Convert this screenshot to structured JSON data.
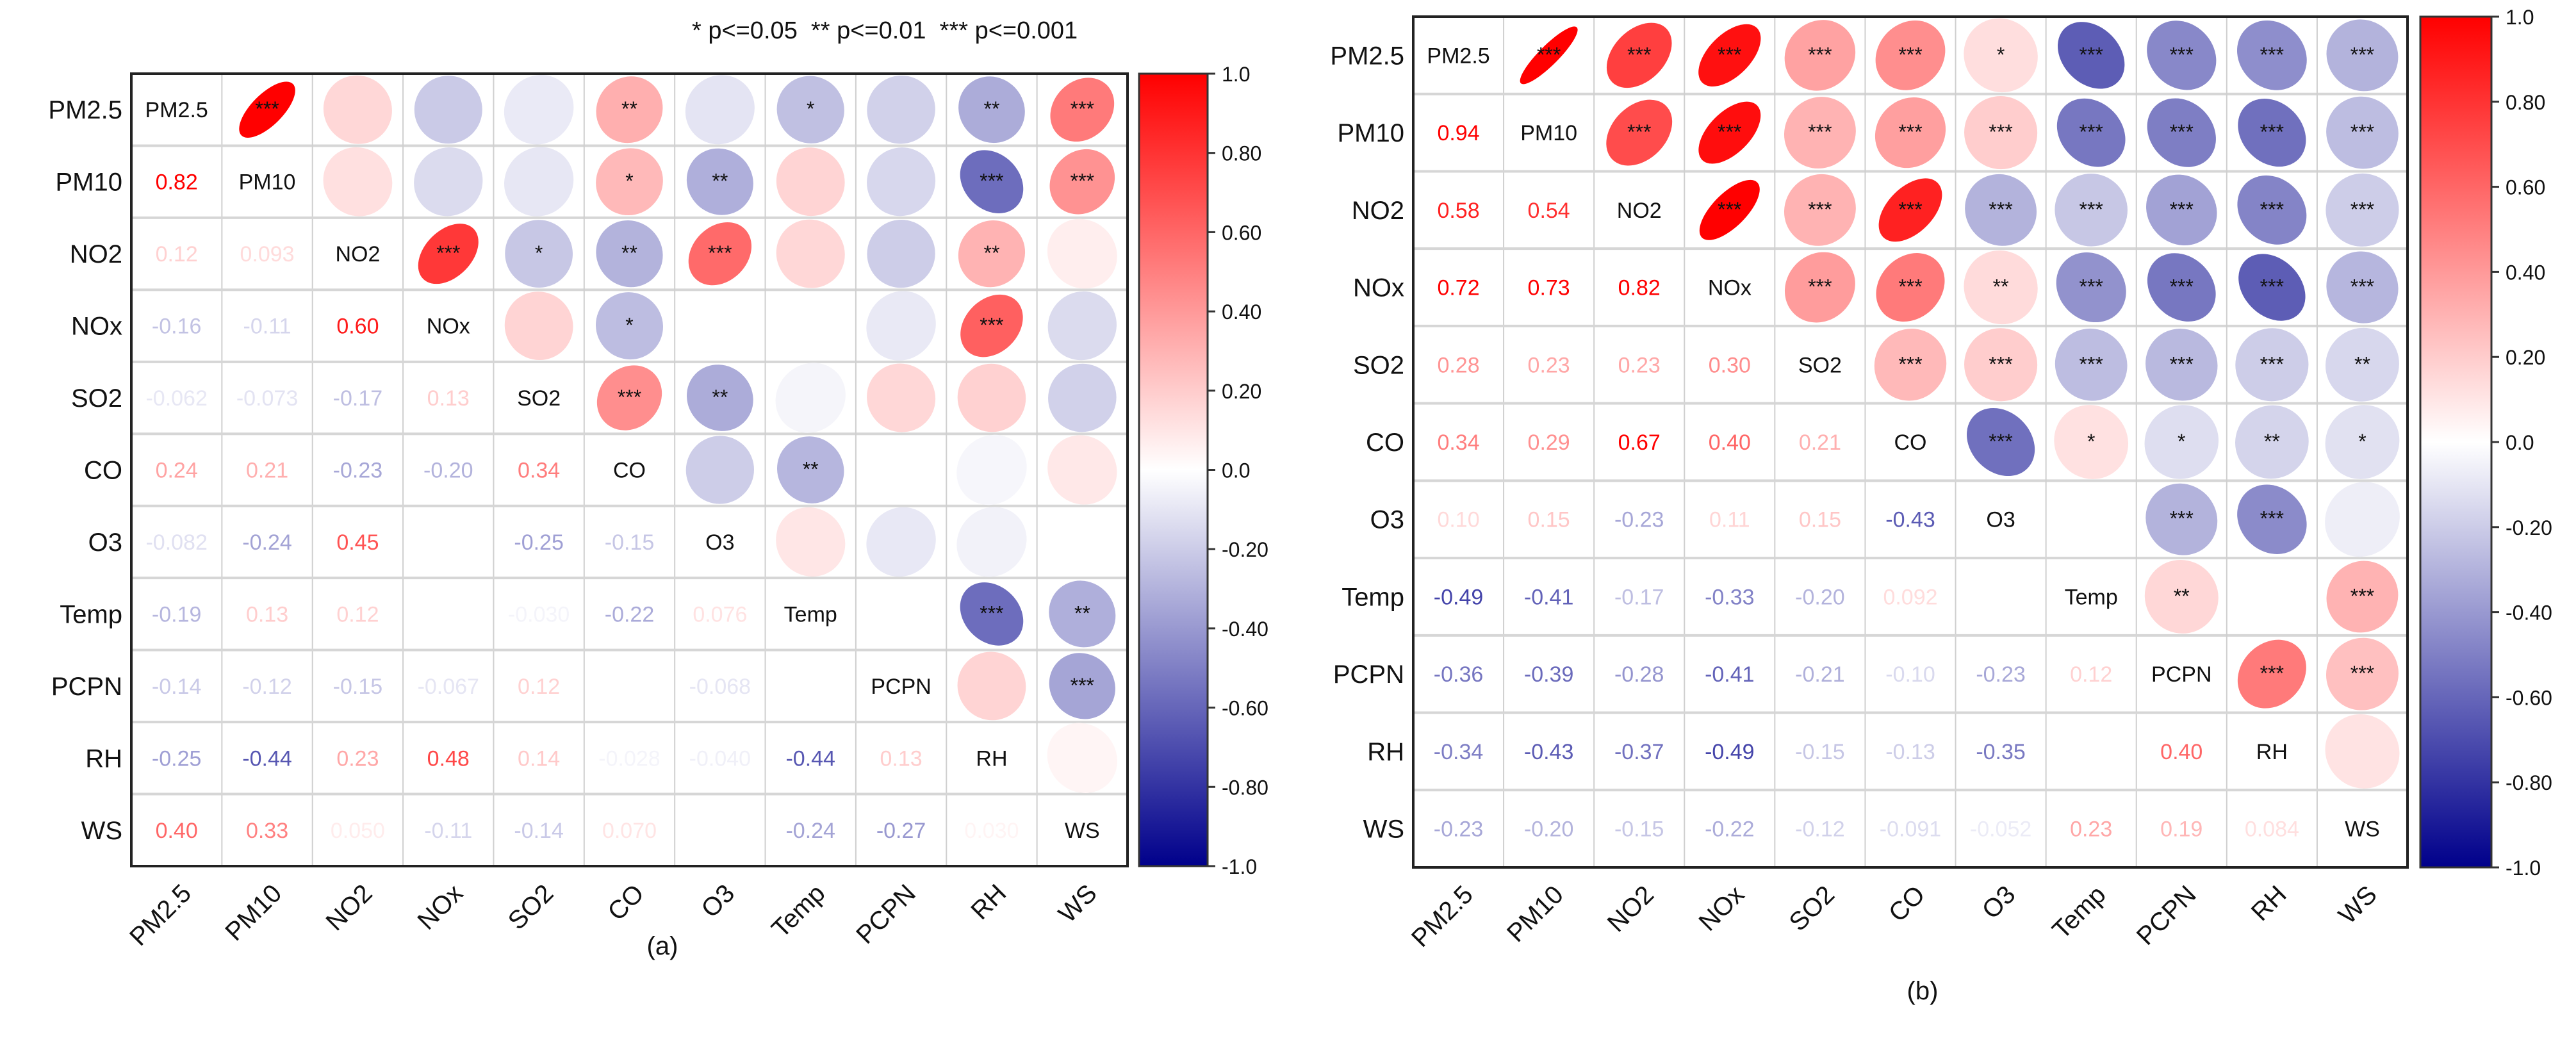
{
  "legend": "* p<=0.05  ** p<=0.01  *** p<=0.001",
  "chart_data": [
    {
      "type": "heatmap",
      "panel_label": "(a)",
      "variables": [
        "PM2.5",
        "PM10",
        "NO2",
        "NOx",
        "SO2",
        "CO",
        "O3",
        "Temp",
        "PCPN",
        "RH",
        "WS"
      ],
      "lower_values": [
        [],
        [
          "0.82"
        ],
        [
          "0.12",
          "0.093"
        ],
        [
          "-0.16",
          "-0.11",
          "0.60"
        ],
        [
          "-0.062",
          "-0.073",
          "-0.17",
          "0.13"
        ],
        [
          "0.24",
          "0.21",
          "-0.23",
          "-0.20",
          "0.34"
        ],
        [
          "-0.082",
          "-0.24",
          "0.45",
          "",
          "-0.25",
          "-0.15"
        ],
        [
          "-0.19",
          "0.13",
          "0.12",
          "",
          "-0.030",
          "-0.22",
          "0.076"
        ],
        [
          "-0.14",
          "-0.12",
          "-0.15",
          "-0.067",
          "0.12",
          "",
          "-0.068",
          ""
        ],
        [
          "-0.25",
          "-0.44",
          "0.23",
          "0.48",
          "0.14",
          "-0.028",
          "-0.040",
          "-0.44",
          "0.13"
        ],
        [
          "0.40",
          "0.33",
          "0.050",
          "-0.11",
          "-0.14",
          "0.070",
          "",
          "-0.24",
          "-0.27",
          "0.030"
        ]
      ],
      "upper_significance": [
        [
          "",
          "***",
          "",
          "",
          "",
          "**",
          "",
          "*",
          "",
          "**",
          "***"
        ],
        [
          "",
          "",
          "",
          "",
          "",
          "*",
          "**",
          "",
          "",
          "***",
          "***"
        ],
        [
          "",
          "",
          "",
          "***",
          "*",
          "**",
          "***",
          "",
          "",
          "**",
          ""
        ],
        [
          "",
          "",
          "",
          "",
          "",
          "*",
          "",
          "",
          "",
          "***",
          ""
        ],
        [
          "",
          "",
          "",
          "",
          "",
          "***",
          "**",
          "",
          "",
          "",
          ""
        ],
        [
          "",
          "",
          "",
          "",
          "",
          "",
          "",
          "**",
          "",
          "",
          ""
        ],
        [
          "",
          "",
          "",
          "",
          "",
          "",
          "",
          "",
          "",
          "",
          ""
        ],
        [
          "",
          "",
          "",
          "",
          "",
          "",
          "",
          "",
          "",
          "***",
          "**"
        ],
        [
          "",
          "",
          "",
          "",
          "",
          "",
          "",
          "",
          "",
          "",
          "***"
        ],
        [
          "",
          "",
          "",
          "",
          "",
          "",
          "",
          "",
          "",
          "",
          ""
        ],
        [
          "",
          "",
          "",
          "",
          "",
          "",
          "",
          "",
          "",
          "",
          ""
        ]
      ],
      "colorbar_ticks": [
        "1.0",
        "0.80",
        "0.60",
        "0.40",
        "0.20",
        "0.0",
        "-0.20",
        "-0.40",
        "-0.60",
        "-0.80",
        "-1.0"
      ],
      "range": [
        -1,
        1
      ],
      "colors": {
        "positive": "#ff0000",
        "neutral": "#ffffff",
        "negative": "#00008b"
      }
    },
    {
      "type": "heatmap",
      "panel_label": "(b)",
      "variables": [
        "PM2.5",
        "PM10",
        "NO2",
        "NOx",
        "SO2",
        "CO",
        "O3",
        "Temp",
        "PCPN",
        "RH",
        "WS"
      ],
      "lower_values": [
        [],
        [
          "0.94"
        ],
        [
          "0.58",
          "0.54"
        ],
        [
          "0.72",
          "0.73",
          "0.82"
        ],
        [
          "0.28",
          "0.23",
          "0.23",
          "0.30"
        ],
        [
          "0.34",
          "0.29",
          "0.67",
          "0.40",
          "0.21"
        ],
        [
          "0.10",
          "0.15",
          "-0.23",
          "0.11",
          "0.15",
          "-0.43"
        ],
        [
          "-0.49",
          "-0.41",
          "-0.17",
          "-0.33",
          "-0.20",
          "0.092",
          ""
        ],
        [
          "-0.36",
          "-0.39",
          "-0.28",
          "-0.41",
          "-0.21",
          "-0.10",
          "-0.23",
          "0.12"
        ],
        [
          "-0.34",
          "-0.43",
          "-0.37",
          "-0.49",
          "-0.15",
          "-0.13",
          "-0.35",
          "",
          "0.40"
        ],
        [
          "-0.23",
          "-0.20",
          "-0.15",
          "-0.22",
          "-0.12",
          "-0.091",
          "-0.052",
          "0.23",
          "0.19",
          "0.084"
        ]
      ],
      "upper_significance": [
        [
          "",
          "***",
          "***",
          "***",
          "***",
          "***",
          "*",
          "***",
          "***",
          "***",
          "***"
        ],
        [
          "",
          "",
          "***",
          "***",
          "***",
          "***",
          "***",
          "***",
          "***",
          "***",
          "***"
        ],
        [
          "",
          "",
          "",
          "***",
          "***",
          "***",
          "***",
          "***",
          "***",
          "***",
          "***"
        ],
        [
          "",
          "",
          "",
          "",
          "***",
          "***",
          "**",
          "***",
          "***",
          "***",
          "***"
        ],
        [
          "",
          "",
          "",
          "",
          "",
          "***",
          "***",
          "***",
          "***",
          "***",
          "**"
        ],
        [
          "",
          "",
          "",
          "",
          "",
          "",
          "***",
          "*",
          "*",
          "**",
          "*"
        ],
        [
          "",
          "",
          "",
          "",
          "",
          "",
          "",
          "",
          "***",
          "***",
          ""
        ],
        [
          "",
          "",
          "",
          "",
          "",
          "",
          "",
          "",
          "**",
          "",
          "***"
        ],
        [
          "",
          "",
          "",
          "",
          "",
          "",
          "",
          "",
          "",
          "***",
          "***"
        ],
        [
          "",
          "",
          "",
          "",
          "",
          "",
          "",
          "",
          "",
          "",
          ""
        ],
        [
          "",
          "",
          "",
          "",
          "",
          "",
          "",
          "",
          "",
          "",
          ""
        ]
      ],
      "colorbar_ticks": [
        "1.0",
        "0.80",
        "0.60",
        "0.40",
        "0.20",
        "0.0",
        "-0.20",
        "-0.40",
        "-0.60",
        "-0.80",
        "-1.0"
      ],
      "range": [
        -1,
        1
      ],
      "colors": {
        "positive": "#ff0000",
        "neutral": "#ffffff",
        "negative": "#00008b"
      }
    }
  ]
}
